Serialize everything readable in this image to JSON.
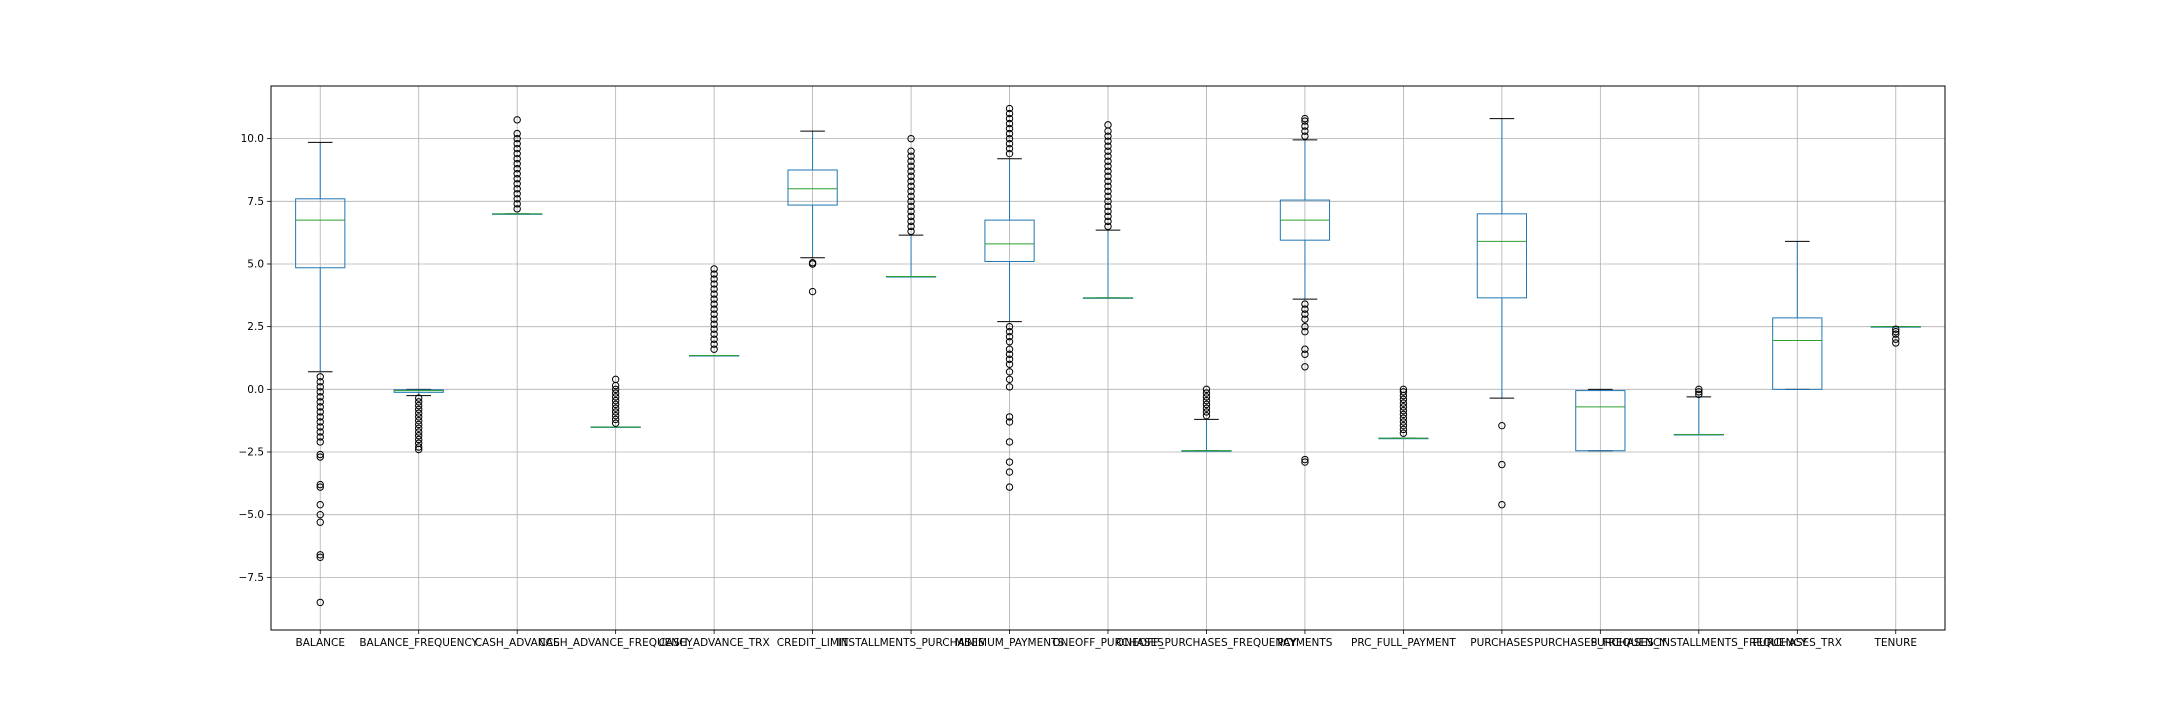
{
  "chart_data": {
    "type": "boxplot",
    "title": "",
    "xlabel": "",
    "ylabel": "",
    "ylim": [
      -9.6,
      12.1
    ],
    "grid": true,
    "yticks": [
      {
        "value": 10.0,
        "label": "10.0"
      },
      {
        "value": 7.5,
        "label": "7.5"
      },
      {
        "value": 5.0,
        "label": "5.0"
      },
      {
        "value": 2.5,
        "label": "2.5"
      },
      {
        "value": 0.0,
        "label": "0.0"
      },
      {
        "value": -2.5,
        "label": "−2.5"
      },
      {
        "value": -5.0,
        "label": "−5.0"
      },
      {
        "value": -7.5,
        "label": "−7.5"
      }
    ],
    "colors": {
      "box": "#1f77b4",
      "median": "#2ca02c",
      "flier": "#000000",
      "grid": "#b0b0b0"
    },
    "boxes": [
      {
        "label": "BALANCE",
        "whislo": 0.7,
        "q1": 4.85,
        "med": 6.75,
        "q3": 7.6,
        "whishi": 9.85,
        "fliers_low": [
          0.5,
          0.3,
          0.1,
          -0.1,
          -0.3,
          -0.5,
          -0.7,
          -0.9,
          -1.1,
          -1.3,
          -1.5,
          -1.7,
          -1.9,
          -2.1,
          -2.6,
          -2.7,
          -3.8,
          -3.9,
          -4.6,
          -5.0,
          -5.3,
          -6.6,
          -6.7,
          -8.5
        ],
        "fliers_high": []
      },
      {
        "label": "BALANCE_FREQUENCY",
        "whislo": -0.25,
        "q1": -0.12,
        "med": -0.05,
        "q3": -0.02,
        "whishi": 0.0,
        "fliers_low": [
          -0.35,
          -0.5,
          -0.65,
          -0.8,
          -0.95,
          -1.1,
          -1.25,
          -1.4,
          -1.55,
          -1.7,
          -1.85,
          -2.0,
          -2.15,
          -2.3,
          -2.4
        ],
        "fliers_high": []
      },
      {
        "label": "CASH_ADVANCE",
        "whislo": 7.0,
        "q1": 7.0,
        "med": 7.0,
        "q3": 7.0,
        "whishi": 7.0,
        "fliers_low": [],
        "fliers_high": [
          7.2,
          7.4,
          7.6,
          7.8,
          8.0,
          8.2,
          8.4,
          8.6,
          8.8,
          9.0,
          9.2,
          9.4,
          9.6,
          9.8,
          10.0,
          10.2,
          10.75
        ]
      },
      {
        "label": "CASH_ADVANCE_FREQUENCY",
        "whislo": -1.5,
        "q1": -1.5,
        "med": -1.5,
        "q3": -1.5,
        "whishi": -1.5,
        "fliers_low": [],
        "fliers_high": [
          -1.35,
          -1.2,
          -1.05,
          -0.9,
          -0.75,
          -0.6,
          -0.45,
          -0.3,
          -0.15,
          0.0,
          0.15,
          0.4
        ]
      },
      {
        "label": "CASH_ADVANCE_TRX",
        "whislo": 1.35,
        "q1": 1.35,
        "med": 1.35,
        "q3": 1.35,
        "whishi": 1.35,
        "fliers_low": [],
        "fliers_high": [
          1.6,
          1.8,
          2.0,
          2.2,
          2.4,
          2.6,
          2.8,
          3.0,
          3.2,
          3.4,
          3.6,
          3.8,
          4.0,
          4.2,
          4.4,
          4.6,
          4.8
        ]
      },
      {
        "label": "CREDIT_LIMIT",
        "whislo": 5.25,
        "q1": 7.35,
        "med": 8.0,
        "q3": 8.75,
        "whishi": 10.3,
        "fliers_low": [
          5.05,
          5.0,
          3.9
        ],
        "fliers_high": []
      },
      {
        "label": "INSTALLMENTS_PURCHASES",
        "whislo": 4.5,
        "q1": 4.5,
        "med": 4.5,
        "q3": 4.5,
        "whishi": 6.15,
        "fliers_low": [],
        "fliers_high": [
          6.3,
          6.5,
          6.7,
          6.9,
          7.1,
          7.3,
          7.5,
          7.7,
          7.9,
          8.1,
          8.3,
          8.5,
          8.7,
          8.9,
          9.1,
          9.3,
          9.5,
          10.0
        ]
      },
      {
        "label": "MINIMUM_PAYMENTS",
        "whislo": 2.7,
        "q1": 5.1,
        "med": 5.8,
        "q3": 6.75,
        "whishi": 9.2,
        "fliers_low": [
          2.5,
          2.3,
          2.1,
          1.9,
          1.6,
          1.4,
          1.2,
          1.0,
          0.7,
          0.4,
          0.1,
          -1.1,
          -1.3,
          -2.1,
          -2.9,
          -3.3,
          -3.9
        ],
        "fliers_high": [
          9.4,
          9.6,
          9.8,
          10.0,
          10.2,
          10.4,
          10.6,
          10.8,
          11.0,
          11.2
        ]
      },
      {
        "label": "ONEOFF_PURCHASES",
        "whislo": 3.65,
        "q1": 3.65,
        "med": 3.65,
        "q3": 3.65,
        "whishi": 6.35,
        "fliers_low": [],
        "fliers_high": [
          6.5,
          6.7,
          6.9,
          7.1,
          7.3,
          7.5,
          7.7,
          7.9,
          8.1,
          8.3,
          8.5,
          8.7,
          8.9,
          9.1,
          9.3,
          9.5,
          9.7,
          9.9,
          10.1,
          10.3,
          10.55
        ]
      },
      {
        "label": "ONEOFF_PURCHASES_FREQUENCY",
        "whislo": -2.45,
        "q1": -2.45,
        "med": -2.45,
        "q3": -2.45,
        "whishi": -1.2,
        "fliers_low": [],
        "fliers_high": [
          -1.05,
          -0.9,
          -0.75,
          -0.6,
          -0.45,
          -0.3,
          -0.15,
          0.0
        ]
      },
      {
        "label": "PAYMENTS",
        "whislo": 3.6,
        "q1": 5.95,
        "med": 6.75,
        "q3": 7.55,
        "whishi": 9.95,
        "fliers_low": [
          3.4,
          3.2,
          3.0,
          2.8,
          2.5,
          2.3,
          1.6,
          1.4,
          0.9,
          -2.8,
          -2.9
        ],
        "fliers_high": [
          10.1,
          10.3,
          10.5,
          10.7,
          10.8
        ]
      },
      {
        "label": "PRC_FULL_PAYMENT",
        "whislo": -1.95,
        "q1": -1.95,
        "med": -1.95,
        "q3": -1.95,
        "whishi": -1.95,
        "fliers_low": [],
        "fliers_high": [
          -1.75,
          -1.6,
          -1.45,
          -1.3,
          -1.15,
          -1.0,
          -0.85,
          -0.7,
          -0.55,
          -0.4,
          -0.25,
          -0.1,
          0.0
        ]
      },
      {
        "label": "PURCHASES",
        "whislo": -0.35,
        "q1": 3.65,
        "med": 5.9,
        "q3": 7.0,
        "whishi": 10.8,
        "fliers_low": [
          -1.45,
          -3.0,
          -4.6
        ],
        "fliers_high": []
      },
      {
        "label": "PURCHASES_FREQUENCY",
        "whislo": -2.45,
        "q1": -2.45,
        "med": -0.7,
        "q3": -0.05,
        "whishi": 0.0,
        "fliers_low": [],
        "fliers_high": []
      },
      {
        "label": "PURCHASES_INSTALLMENTS_FREQUENCY",
        "whislo": -1.8,
        "q1": -1.8,
        "med": -1.8,
        "q3": -1.8,
        "whishi": -0.3,
        "fliers_low": [],
        "fliers_high": [
          -0.2,
          -0.1,
          0.0
        ]
      },
      {
        "label": "PURCHASES_TRX",
        "whislo": 0.0,
        "q1": 0.0,
        "med": 1.95,
        "q3": 2.85,
        "whishi": 5.9,
        "fliers_low": [],
        "fliers_high": []
      },
      {
        "label": "TENURE",
        "whislo": 2.5,
        "q1": 2.5,
        "med": 2.5,
        "q3": 2.5,
        "whishi": 2.5,
        "fliers_low": [
          2.4,
          2.3,
          2.2,
          2.0,
          1.85
        ],
        "fliers_high": []
      }
    ]
  }
}
